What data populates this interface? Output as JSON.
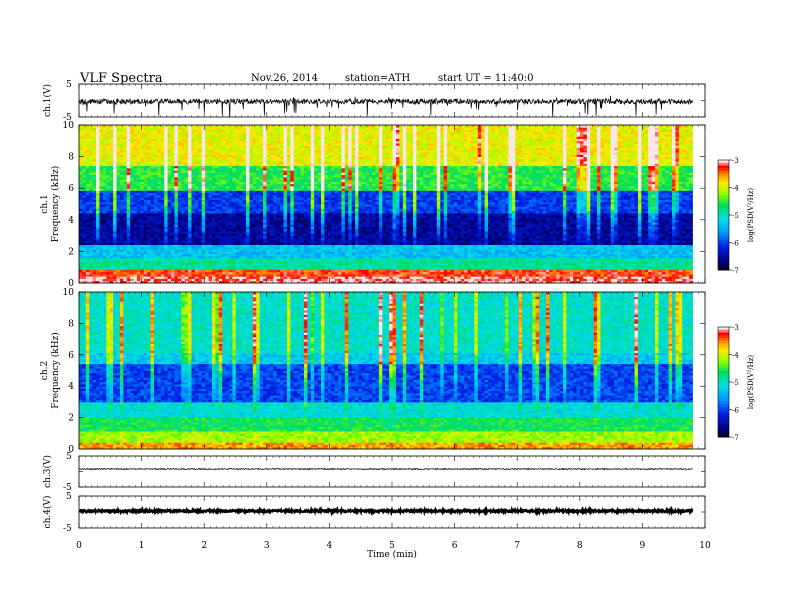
{
  "header": {
    "title": "VLF Spectra",
    "date": "Nov.26, 2014",
    "station": "station=ATH",
    "start": "start  UT  =   11:40:0"
  },
  "chart_data": [
    {
      "type": "line",
      "panel": "ch1-waveform",
      "ylabel": "ch.1(V)",
      "ylim": [
        -5,
        5
      ],
      "yticks": [
        "5",
        "-5"
      ],
      "xlim": [
        0,
        10
      ],
      "data_end": 9.8,
      "baseline": -0.3,
      "noise_band": [
        -1.3,
        0.5
      ],
      "spike_range": [
        -5,
        1.5
      ]
    },
    {
      "type": "heatmap",
      "panel": "ch1-spectrogram",
      "ylabel": [
        "ch.1",
        "Frequency  (kHz)"
      ],
      "ylim": [
        0,
        10
      ],
      "yticks": [
        "0",
        "2",
        "4",
        "6",
        "8",
        "10"
      ],
      "xlim": [
        0,
        10
      ],
      "data_end": 9.8,
      "colorbar": {
        "label": "log(PSD(V²/Hz)",
        "range": [
          -7,
          -3
        ],
        "ticks": [
          "-3",
          "-4",
          "-5",
          "-6",
          "-7"
        ],
        "colors": [
          "#ffffff",
          "#ff4040",
          "#ff0000",
          "#ff8800",
          "#ffee00",
          "#80ff00",
          "#00e060",
          "#00e0e0",
          "#0090ff",
          "#0020e0",
          "#000080",
          "#000000"
        ]
      },
      "profile": [
        {
          "from": 0.0,
          "to": 0.4,
          "level": "white"
        },
        {
          "from": 0.4,
          "to": 0.8,
          "level": "red"
        },
        {
          "from": 0.8,
          "to": 2.5,
          "level": "green-cyan"
        },
        {
          "from": 2.5,
          "to": 5.8,
          "level": "dark blue"
        },
        {
          "from": 5.8,
          "to": 10.0,
          "level": "green-yellow-red"
        }
      ]
    },
    {
      "type": "heatmap",
      "panel": "ch2-spectrogram",
      "ylabel": [
        "ch.2",
        "Frequency  (kHz)"
      ],
      "ylim": [
        0,
        10
      ],
      "yticks": [
        "0",
        "2",
        "4",
        "6",
        "8",
        "10"
      ],
      "xlim": [
        0,
        10
      ],
      "data_end": 9.8,
      "colorbar": {
        "label": "log(PSD(V²/Hz)",
        "range": [
          -7,
          -3
        ],
        "ticks": [
          "-3",
          "-4",
          "-5",
          "-6",
          "-7"
        ]
      },
      "profile": [
        {
          "from": 0.0,
          "to": 1.2,
          "level": "orange-yellow-green"
        },
        {
          "from": 1.2,
          "to": 3.0,
          "level": "green-cyan"
        },
        {
          "from": 3.0,
          "to": 5.5,
          "level": "blue"
        },
        {
          "from": 5.5,
          "to": 10.0,
          "level": "cyan-green"
        }
      ]
    },
    {
      "type": "line",
      "panel": "ch3-waveform",
      "ylabel": "ch.3(V)",
      "ylim": [
        -5,
        5
      ],
      "yticks": [
        "5",
        "-5"
      ],
      "xlim": [
        0,
        10
      ],
      "data_end": 9.8,
      "baseline": 0.8
    },
    {
      "type": "line",
      "panel": "ch4-waveform",
      "ylabel": "ch.4(V)",
      "ylim": [
        -5,
        5
      ],
      "yticks": [
        "5",
        "-5"
      ],
      "xlim": [
        0,
        10
      ],
      "data_end": 9.8,
      "baseline": 0.3
    }
  ],
  "x_axis": {
    "label": "Time  (min)",
    "ticks": [
      "0",
      "1",
      "2",
      "3",
      "4",
      "5",
      "6",
      "7",
      "8",
      "9",
      "10"
    ]
  }
}
